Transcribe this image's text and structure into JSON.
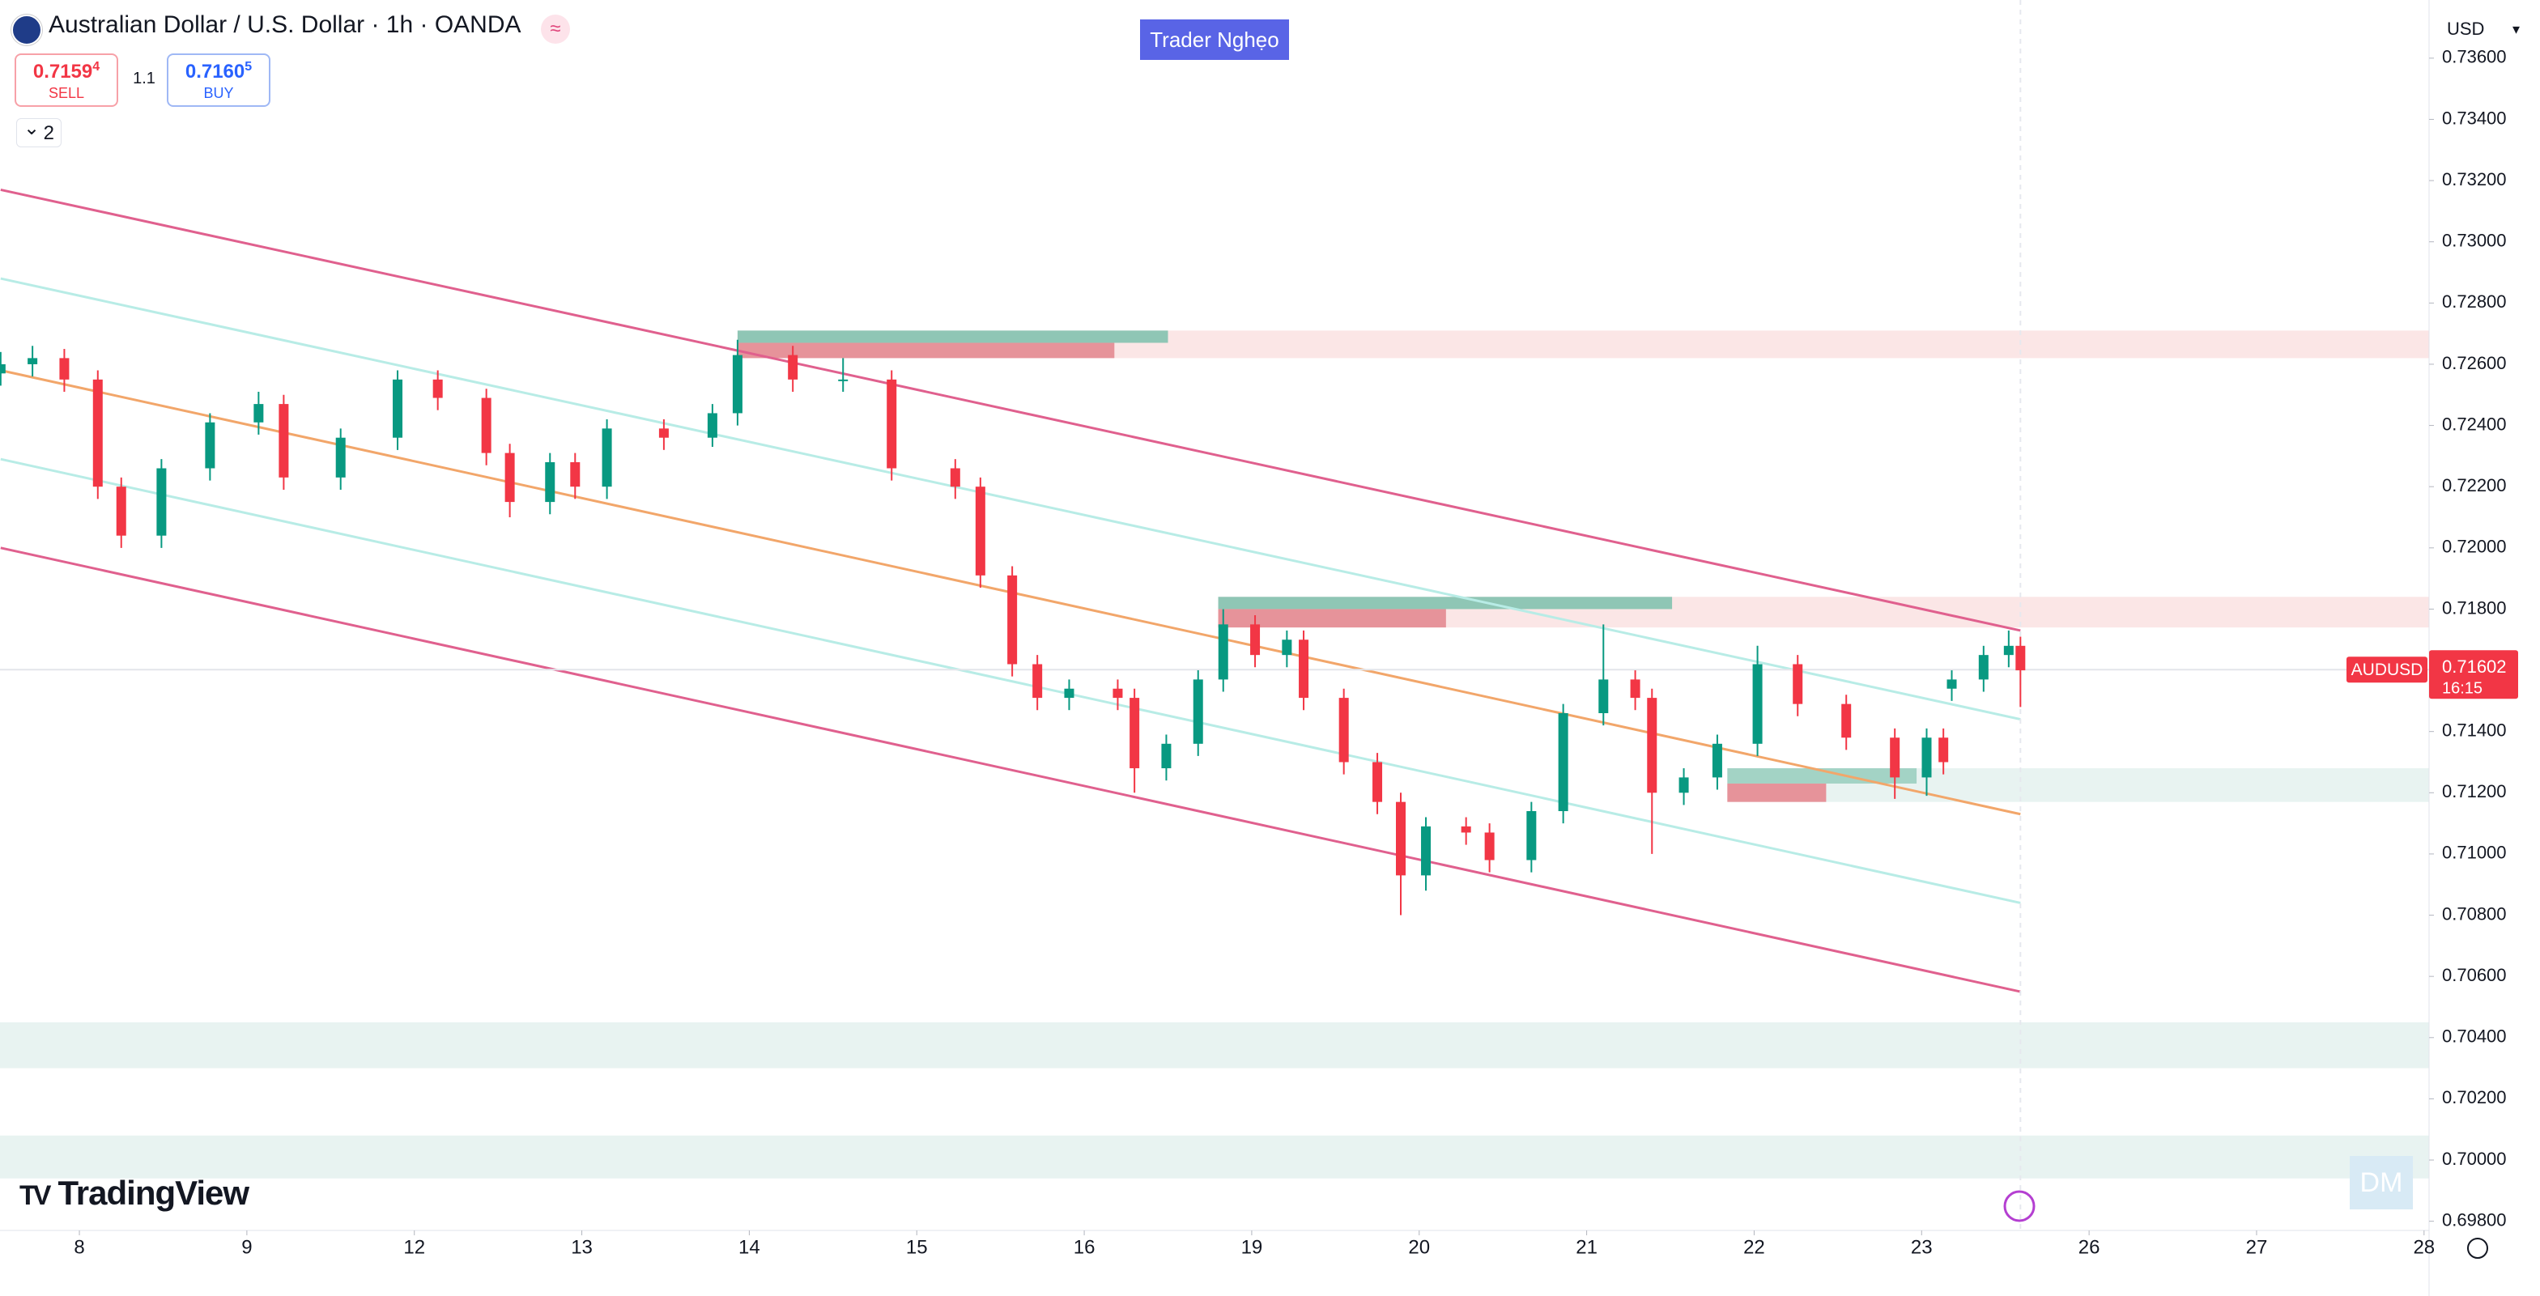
{
  "chart_data": {
    "type": "candlestick",
    "title": "Australian Dollar / U.S. Dollar · 1h · OANDA",
    "currency": "USD",
    "up_color": "#089981",
    "down_color": "#f23645",
    "x": [
      -0.47,
      -0.28,
      -0.09,
      0.11,
      0.25,
      0.49,
      0.78,
      1.07,
      1.22,
      1.56,
      1.9,
      2.14,
      2.43,
      2.57,
      2.81,
      2.96,
      3.15,
      3.49,
      3.78,
      3.93,
      4.26,
      4.56,
      4.85,
      5.23,
      5.38,
      5.57,
      5.72,
      5.91,
      6.2,
      6.3,
      6.49,
      6.68,
      6.83,
      7.02,
      7.21,
      7.31,
      7.55,
      7.75,
      7.89,
      8.04,
      8.28,
      8.42,
      8.67,
      8.86,
      9.1,
      9.29,
      9.39,
      9.58,
      9.78,
      10.02,
      10.26,
      10.55,
      10.84,
      11.03,
      11.13,
      11.18,
      11.37,
      11.52,
      11.59
    ],
    "open": [
      0.7257,
      0.726,
      0.7262,
      0.7255,
      0.722,
      0.7204,
      0.7226,
      0.7241,
      0.7247,
      0.7223,
      0.7236,
      0.7255,
      0.7249,
      0.7231,
      0.7215,
      0.7228,
      0.722,
      0.7239,
      0.7236,
      0.7244,
      0.7263,
      0.7255,
      0.7255,
      0.7226,
      0.722,
      0.7191,
      0.7162,
      0.7151,
      0.7154,
      0.7151,
      0.7128,
      0.7136,
      0.7157,
      0.7175,
      0.7165,
      0.717,
      0.7151,
      0.713,
      0.7117,
      0.7093,
      0.7109,
      0.7107,
      0.7098,
      0.7114,
      0.7146,
      0.7157,
      0.7151,
      0.712,
      0.7125,
      0.7136,
      0.7162,
      0.7149,
      0.7138,
      0.7125,
      0.7138,
      0.7154,
      0.7157,
      0.7165,
      0.7168
    ],
    "high": [
      0.7264,
      0.7266,
      0.7265,
      0.7258,
      0.7223,
      0.7229,
      0.7244,
      0.7251,
      0.725,
      0.7239,
      0.7258,
      0.7258,
      0.7252,
      0.7234,
      0.7231,
      0.7231,
      0.7242,
      0.7242,
      0.7247,
      0.7268,
      0.7266,
      0.7262,
      0.7258,
      0.7229,
      0.7223,
      0.7194,
      0.7165,
      0.7157,
      0.7157,
      0.7154,
      0.7139,
      0.716,
      0.718,
      0.7178,
      0.7173,
      0.7173,
      0.7154,
      0.7133,
      0.712,
      0.7112,
      0.7112,
      0.711,
      0.7117,
      0.7149,
      0.7175,
      0.716,
      0.7154,
      0.7128,
      0.7139,
      0.7168,
      0.7165,
      0.7152,
      0.7141,
      0.7141,
      0.7141,
      0.716,
      0.7168,
      0.7173,
      0.7171
    ],
    "low": [
      0.7253,
      0.7256,
      0.7251,
      0.7216,
      0.72,
      0.72,
      0.7222,
      0.7237,
      0.7219,
      0.7219,
      0.7232,
      0.7245,
      0.7227,
      0.721,
      0.7211,
      0.7216,
      0.7216,
      0.7232,
      0.7233,
      0.724,
      0.7251,
      0.7251,
      0.7222,
      0.7216,
      0.7187,
      0.7158,
      0.7147,
      0.7147,
      0.7147,
      0.712,
      0.7124,
      0.7132,
      0.7153,
      0.7161,
      0.7161,
      0.7147,
      0.7126,
      0.7113,
      0.708,
      0.7088,
      0.7103,
      0.7094,
      0.7094,
      0.711,
      0.7142,
      0.7147,
      0.71,
      0.7116,
      0.7121,
      0.7132,
      0.7145,
      0.7134,
      0.7118,
      0.7119,
      0.7126,
      0.715,
      0.7153,
      0.7161,
      0.7148
    ],
    "close": [
      0.726,
      0.7262,
      0.7255,
      0.722,
      0.7204,
      0.7226,
      0.7241,
      0.7247,
      0.7223,
      0.7236,
      0.7255,
      0.7249,
      0.7231,
      0.7215,
      0.7228,
      0.722,
      0.7239,
      0.7236,
      0.7244,
      0.7263,
      0.7255,
      0.7255,
      0.7226,
      0.722,
      0.7191,
      0.7162,
      0.7151,
      0.7154,
      0.7151,
      0.7128,
      0.7136,
      0.7157,
      0.7175,
      0.7165,
      0.717,
      0.7151,
      0.713,
      0.7117,
      0.7093,
      0.7109,
      0.7107,
      0.7098,
      0.7114,
      0.7146,
      0.7157,
      0.7151,
      0.712,
      0.7125,
      0.7136,
      0.7162,
      0.7149,
      0.7138,
      0.7125,
      0.7138,
      0.713,
      0.7157,
      0.7165,
      0.7168,
      0.716
    ],
    "xlim": [
      -0.474,
      14.03
    ],
    "xticks": [
      {
        "value": 0,
        "label": "8"
      },
      {
        "value": 1,
        "label": "9"
      },
      {
        "value": 2,
        "label": "12"
      },
      {
        "value": 3,
        "label": "13"
      },
      {
        "value": 4,
        "label": "14"
      },
      {
        "value": 5,
        "label": "15"
      },
      {
        "value": 6,
        "label": "16"
      },
      {
        "value": 7,
        "label": "19"
      },
      {
        "value": 8,
        "label": "20"
      },
      {
        "value": 9,
        "label": "21"
      },
      {
        "value": 10,
        "label": "22"
      },
      {
        "value": 11,
        "label": "23"
      },
      {
        "value": 12,
        "label": "26"
      },
      {
        "value": 13,
        "label": "27"
      },
      {
        "value": 14,
        "label": "28"
      }
    ],
    "ylim": [
      0.6977,
      0.7379
    ],
    "yticks": [
      {
        "value": 0.736,
        "label": "0.73600"
      },
      {
        "value": 0.734,
        "label": "0.73400"
      },
      {
        "value": 0.732,
        "label": "0.73200"
      },
      {
        "value": 0.73,
        "label": "0.73000"
      },
      {
        "value": 0.728,
        "label": "0.72800"
      },
      {
        "value": 0.726,
        "label": "0.72600"
      },
      {
        "value": 0.724,
        "label": "0.72400"
      },
      {
        "value": 0.722,
        "label": "0.72200"
      },
      {
        "value": 0.72,
        "label": "0.72000"
      },
      {
        "value": 0.718,
        "label": "0.71800"
      },
      {
        "value": 0.714,
        "label": "0.71400"
      },
      {
        "value": 0.712,
        "label": "0.71200"
      },
      {
        "value": 0.71,
        "label": "0.71000"
      },
      {
        "value": 0.708,
        "label": "0.70800"
      },
      {
        "value": 0.706,
        "label": "0.70600"
      },
      {
        "value": 0.704,
        "label": "0.70400"
      },
      {
        "value": 0.702,
        "label": "0.70200"
      },
      {
        "value": 0.7,
        "label": "0.70000"
      },
      {
        "value": 0.698,
        "label": "0.69800"
      }
    ],
    "grid": false,
    "zones": [
      {
        "x": [
          3.93,
          14.03
        ],
        "y": [
          0.7262,
          0.7271
        ],
        "color": "#fbe6e6"
      },
      {
        "x": [
          3.93,
          6.5
        ],
        "y": [
          0.7267,
          0.7271
        ],
        "color": "#8fc6b5"
      },
      {
        "x": [
          3.93,
          6.18
        ],
        "y": [
          0.7262,
          0.7267
        ],
        "color": "#e6939a"
      },
      {
        "x": [
          6.8,
          14.03
        ],
        "y": [
          0.7174,
          0.7184
        ],
        "color": "#fbe6e6"
      },
      {
        "x": [
          6.8,
          9.51
        ],
        "y": [
          0.718,
          0.7184
        ],
        "color": "#8fc6b5"
      },
      {
        "x": [
          6.8,
          8.16
        ],
        "y": [
          0.7174,
          0.718
        ],
        "color": "#e6939a"
      },
      {
        "x": [
          9.84,
          14.03
        ],
        "y": [
          0.7117,
          0.7128
        ],
        "color": "#e8f3f1"
      },
      {
        "x": [
          9.84,
          10.97
        ],
        "y": [
          0.7123,
          0.7128
        ],
        "color": "#a3d3c5"
      },
      {
        "x": [
          9.84,
          10.43
        ],
        "y": [
          0.7117,
          0.7123
        ],
        "color": "#e6939a"
      },
      {
        "x": [
          -0.474,
          14.03
        ],
        "y": [
          0.703,
          0.7045
        ],
        "color": "#e8f3f1"
      },
      {
        "x": [
          -0.474,
          14.03
        ],
        "y": [
          0.6994,
          0.7008
        ],
        "color": "#e8f3f1"
      }
    ],
    "trend_lines": [
      {
        "x": [
          -0.47,
          11.59
        ],
        "y": [
          0.7317,
          0.7173
        ],
        "color": "#e0608e"
      },
      {
        "x": [
          -0.47,
          11.59
        ],
        "y": [
          0.7288,
          0.7144
        ],
        "color": "#b8ece6"
      },
      {
        "x": [
          -0.47,
          11.59
        ],
        "y": [
          0.7258,
          0.7113
        ],
        "color": "#f2a66a"
      },
      {
        "x": [
          -0.47,
          11.59
        ],
        "y": [
          0.7229,
          0.7084
        ],
        "color": "#b8ece6"
      },
      {
        "x": [
          -0.47,
          11.59
        ],
        "y": [
          0.72,
          0.7055
        ],
        "color": "#e0608e"
      }
    ],
    "symbol": "AUDUSD",
    "last_price": 0.71602,
    "countdown": "16:15"
  },
  "header": {
    "sell": {
      "price": "0.7159",
      "pip": "4",
      "label": "SELL"
    },
    "spread": "1.1",
    "buy": {
      "price": "0.7160",
      "pip": "5",
      "label": "BUY"
    },
    "indicators": "2"
  },
  "badge": "Trader Nghẹo",
  "watermark": "TradingView",
  "corner_badge": "DM"
}
